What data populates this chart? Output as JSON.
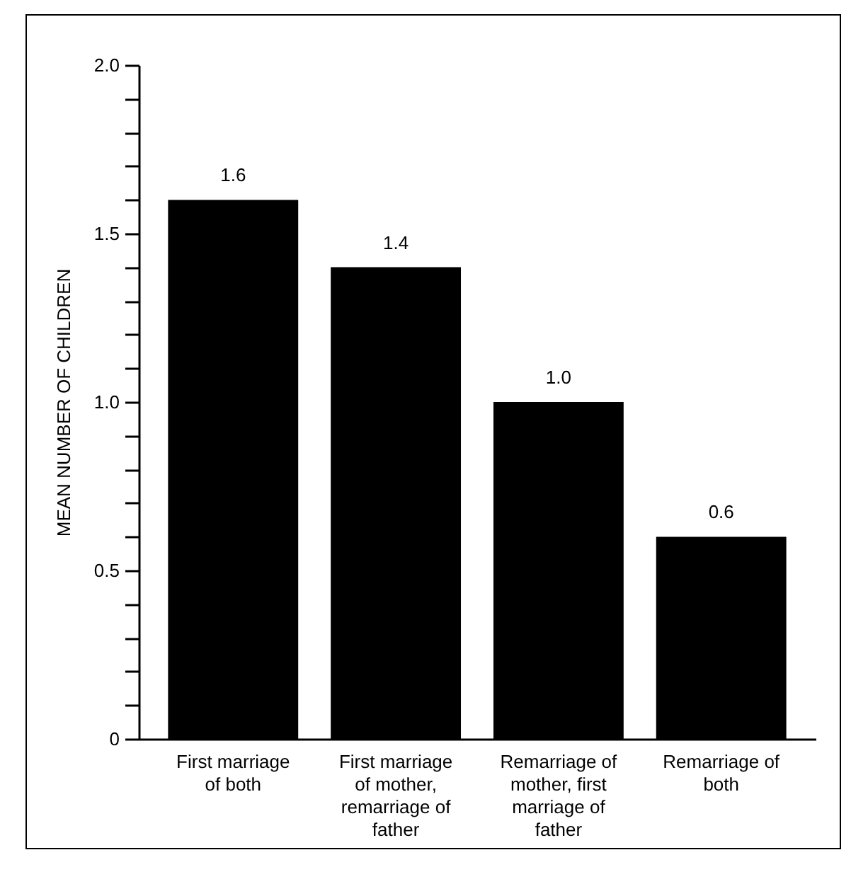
{
  "chart_data": {
    "type": "bar",
    "ylabel": "MEAN NUMBER OF CHILDREN",
    "categories": [
      "First marriage of both",
      "First marriage of mother, remarriage of father",
      "Remarriage of mother, first marriage of father",
      "Remarriage of both"
    ],
    "values": [
      1.6,
      1.4,
      1.0,
      0.6
    ],
    "value_labels": [
      "1.6",
      "1.4",
      "1.0",
      "0.6"
    ],
    "color": "#000000",
    "ylim": [
      0,
      2
    ],
    "yticks": [
      0,
      {
        "value": 0.1,
        "label": null
      },
      {
        "value": 0.2,
        "label": null
      },
      {
        "value": 0.3,
        "label": null
      },
      {
        "value": 0.4,
        "label": null
      },
      0.5,
      {
        "value": 0.6,
        "label": null
      },
      {
        "value": 0.7,
        "label": null
      },
      {
        "value": 0.8,
        "label": null
      },
      {
        "value": 0.9,
        "label": null
      },
      {
        "value": 1,
        "label": "1.0"
      },
      {
        "value": 1.1,
        "label": null
      },
      {
        "value": 1.2,
        "label": null
      },
      {
        "value": 1.3,
        "label": null
      },
      {
        "value": 1.4,
        "label": null
      },
      1.5,
      {
        "value": 1.6,
        "label": null
      },
      {
        "value": 1.7,
        "label": null
      },
      {
        "value": 1.8,
        "label": null
      },
      {
        "value": 1.9,
        "label": null
      },
      {
        "value": 2,
        "label": "2.0"
      }
    ],
    "grid": false
  }
}
